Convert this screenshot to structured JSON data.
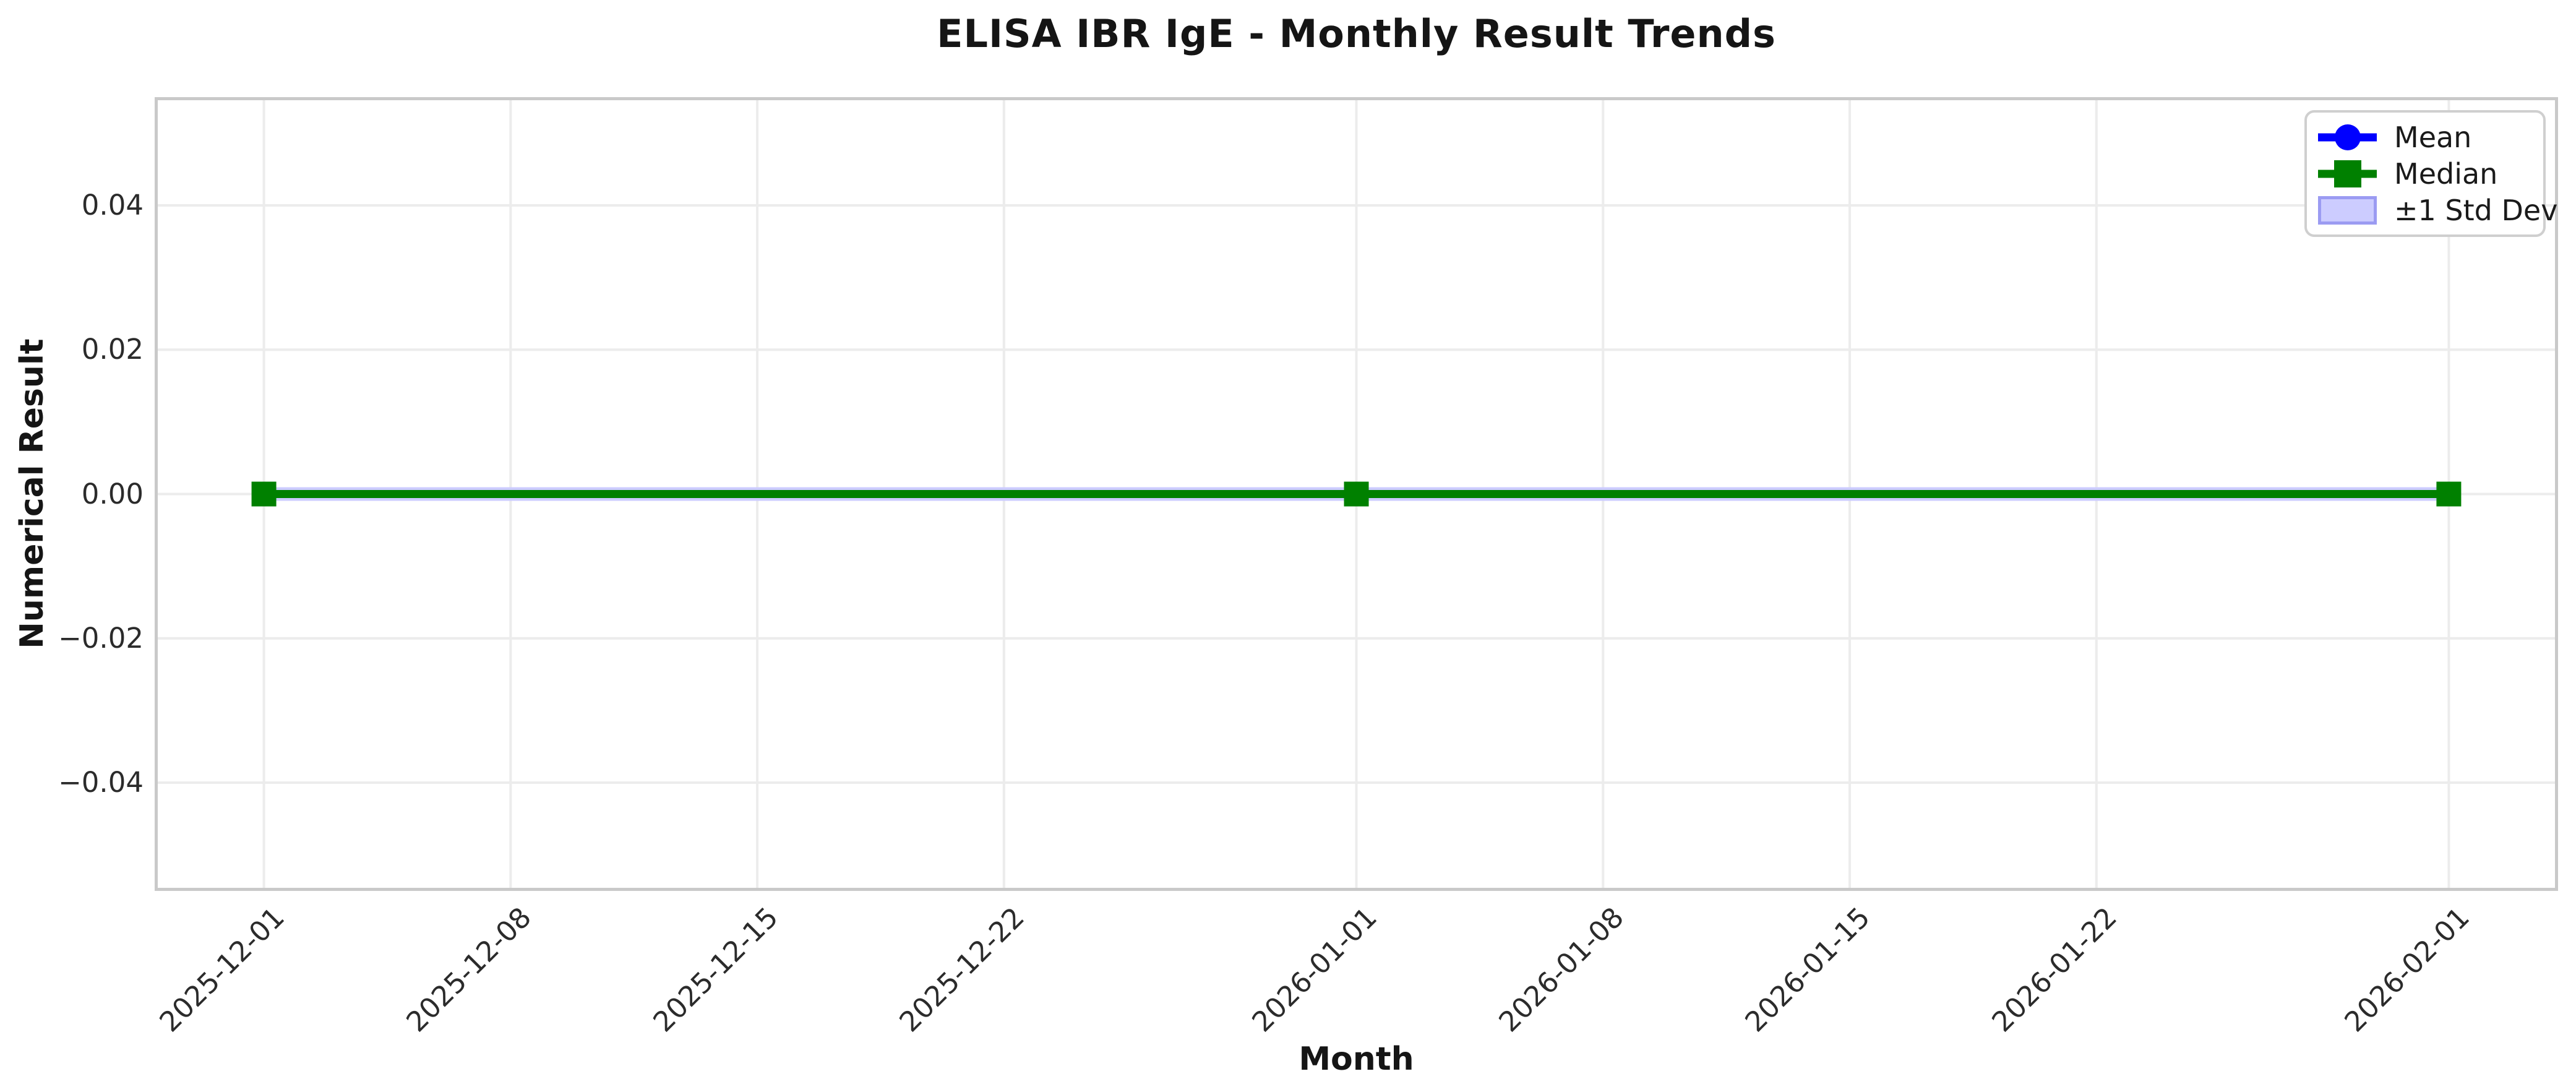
{
  "title": "ELISA IBR IgE - Monthly Result Trends",
  "chart_data": {
    "type": "line",
    "title": "ELISA IBR IgE - Monthly Result Trends",
    "xlabel": "Month",
    "ylabel": "Numerical Result",
    "x": [
      "2025-12-01",
      "2026-01-01",
      "2026-02-01"
    ],
    "x_day_offsets": [
      0,
      31,
      62
    ],
    "series": [
      {
        "name": "Mean",
        "color": "#0000ff",
        "marker": "circle",
        "values": [
          0.0,
          0.0,
          0.0
        ]
      },
      {
        "name": "Median",
        "color": "#008000",
        "marker": "square",
        "values": [
          0.0,
          0.0,
          0.0
        ]
      }
    ],
    "band": {
      "name": "±1 Std Dev",
      "fill": "#ccccff",
      "edge": "#9b9bf2",
      "low": [
        0.0,
        0.0,
        0.0
      ],
      "high": [
        0.0,
        0.0,
        0.0
      ]
    },
    "xticks": [
      {
        "label": "2025-12-01",
        "day": 0
      },
      {
        "label": "2025-12-08",
        "day": 7
      },
      {
        "label": "2025-12-15",
        "day": 14
      },
      {
        "label": "2025-12-22",
        "day": 21
      },
      {
        "label": "2026-01-01",
        "day": 31
      },
      {
        "label": "2026-01-08",
        "day": 38
      },
      {
        "label": "2026-01-15",
        "day": 45
      },
      {
        "label": "2026-01-22",
        "day": 52
      },
      {
        "label": "2026-02-01",
        "day": 62
      }
    ],
    "yticks": [
      {
        "label": "0.04",
        "value": 0.04
      },
      {
        "label": "0.02",
        "value": 0.02
      },
      {
        "label": "0.00",
        "value": 0.0
      },
      {
        "label": "−0.02",
        "value": -0.02
      },
      {
        "label": "−0.04",
        "value": -0.04
      }
    ],
    "xlim_days": [
      -3.1,
      65.1
    ],
    "ylim": [
      -0.055,
      0.055
    ],
    "grid": true,
    "legend_position": "upper right",
    "style": {
      "grid_color": "#ececec",
      "spine_color": "#c9c9c9",
      "background": "#ffffff"
    }
  }
}
